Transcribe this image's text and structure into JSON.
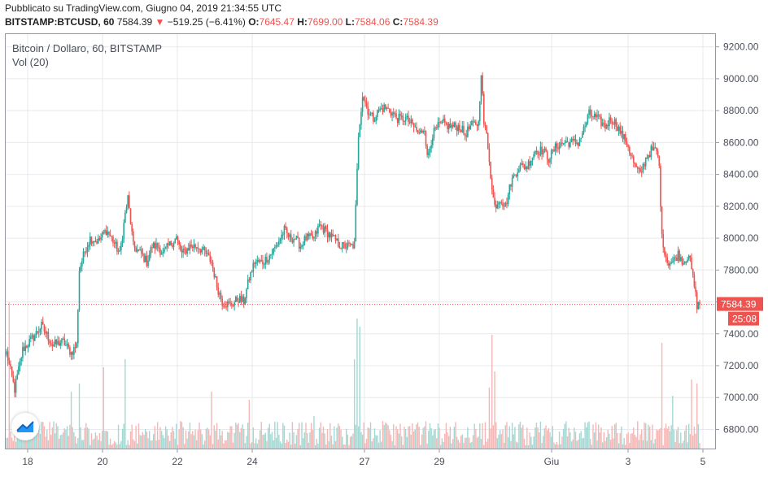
{
  "header": {
    "published": "Pubblicato su TradingView.com, Giugno 04, 2019 21:34:55 UTC",
    "symbol": "BITSTAMP:BTCUSD, 60",
    "last": "7584.39",
    "change": "−519.25 (−6.41%)",
    "o_label": "O:",
    "o_value": "7645.47",
    "h_label": "H:",
    "h_value": "7699.00",
    "l_label": "L:",
    "l_value": "7584.06",
    "c_label": "C:",
    "c_value": "7584.39"
  },
  "legend": {
    "title": "Bitcoin / Dollaro, 60, BITSTAMP",
    "volume": "Vol (20)"
  },
  "price_tag": {
    "value": "7584.39",
    "countdown": "25:08"
  },
  "colors": {
    "up": "#26a69a",
    "down": "#ef5350",
    "up_vol": "#a4d8d3",
    "down_vol": "#f5b7b5",
    "grid": "#e6e9ee",
    "axis_text": "#4a4e59"
  },
  "chart_data": {
    "type": "candlestick",
    "x_ticks": [
      "18",
      "20",
      "22",
      "24",
      "27",
      "29",
      "Giu",
      "3",
      "5"
    ],
    "y_ticks": [
      6800,
      7000,
      7200,
      7400,
      7600,
      7800,
      8000,
      8200,
      8400,
      8600,
      8800,
      9000,
      9200
    ],
    "ylim": [
      6680,
      9280
    ],
    "last_price": 7584.39,
    "anchors": [
      [
        0,
        7280
      ],
      [
        6,
        7050
      ],
      [
        12,
        7300
      ],
      [
        20,
        7380
      ],
      [
        26,
        7450
      ],
      [
        34,
        7330
      ],
      [
        42,
        7350
      ],
      [
        48,
        7280
      ],
      [
        52,
        7330
      ],
      [
        54,
        7800
      ],
      [
        58,
        7920
      ],
      [
        62,
        8000
      ],
      [
        68,
        7980
      ],
      [
        74,
        8050
      ],
      [
        78,
        8000
      ],
      [
        84,
        7900
      ],
      [
        88,
        8150
      ],
      [
        90,
        8250
      ],
      [
        94,
        7950
      ],
      [
        100,
        7900
      ],
      [
        104,
        7850
      ],
      [
        108,
        7950
      ],
      [
        112,
        7950
      ],
      [
        116,
        7900
      ],
      [
        120,
        7950
      ],
      [
        126,
        8000
      ],
      [
        130,
        7900
      ],
      [
        136,
        7950
      ],
      [
        142,
        7950
      ],
      [
        148,
        7900
      ],
      [
        152,
        7850
      ],
      [
        156,
        7700
      ],
      [
        160,
        7600
      ],
      [
        166,
        7580
      ],
      [
        172,
        7620
      ],
      [
        176,
        7600
      ],
      [
        180,
        7750
      ],
      [
        184,
        7850
      ],
      [
        190,
        7850
      ],
      [
        196,
        7900
      ],
      [
        200,
        7950
      ],
      [
        206,
        8050
      ],
      [
        210,
        8000
      ],
      [
        214,
        8000
      ],
      [
        218,
        7950
      ],
      [
        222,
        8000
      ],
      [
        228,
        8000
      ],
      [
        232,
        8080
      ],
      [
        236,
        8050
      ],
      [
        242,
        8000
      ],
      [
        248,
        7950
      ],
      [
        252,
        7950
      ],
      [
        256,
        7950
      ],
      [
        258,
        7960
      ],
      [
        261,
        8650
      ],
      [
        264,
        8900
      ],
      [
        268,
        8800
      ],
      [
        272,
        8750
      ],
      [
        276,
        8800
      ],
      [
        280,
        8820
      ],
      [
        284,
        8800
      ],
      [
        290,
        8750
      ],
      [
        296,
        8750
      ],
      [
        302,
        8700
      ],
      [
        306,
        8650
      ],
      [
        310,
        8700
      ],
      [
        312,
        8500
      ],
      [
        316,
        8650
      ],
      [
        320,
        8700
      ],
      [
        324,
        8720
      ],
      [
        328,
        8700
      ],
      [
        332,
        8700
      ],
      [
        336,
        8700
      ],
      [
        340,
        8650
      ],
      [
        344,
        8700
      ],
      [
        348,
        8720
      ],
      [
        350,
        8720
      ],
      [
        352,
        9050
      ],
      [
        354,
        8720
      ],
      [
        356,
        8650
      ],
      [
        358,
        8500
      ],
      [
        360,
        8300
      ],
      [
        362,
        8200
      ],
      [
        366,
        8250
      ],
      [
        370,
        8200
      ],
      [
        374,
        8350
      ],
      [
        380,
        8450
      ],
      [
        386,
        8450
      ],
      [
        392,
        8550
      ],
      [
        398,
        8550
      ],
      [
        402,
        8500
      ],
      [
        408,
        8580
      ],
      [
        414,
        8600
      ],
      [
        420,
        8600
      ],
      [
        424,
        8600
      ],
      [
        428,
        8680
      ],
      [
        432,
        8780
      ],
      [
        438,
        8750
      ],
      [
        444,
        8700
      ],
      [
        448,
        8750
      ],
      [
        452,
        8720
      ],
      [
        456,
        8650
      ],
      [
        460,
        8600
      ],
      [
        462,
        8550
      ],
      [
        466,
        8450
      ],
      [
        470,
        8400
      ],
      [
        474,
        8500
      ],
      [
        478,
        8550
      ],
      [
        482,
        8550
      ],
      [
        484,
        8450
      ],
      [
        486,
        8000
      ],
      [
        490,
        7850
      ],
      [
        494,
        7850
      ],
      [
        498,
        7900
      ],
      [
        502,
        7850
      ],
      [
        506,
        7900
      ],
      [
        510,
        7700
      ],
      [
        512,
        7580
      ],
      [
        514,
        7584.39
      ]
    ],
    "volume_spikes": [
      [
        2,
        180
      ],
      [
        48,
        70
      ],
      [
        54,
        80
      ],
      [
        72,
        100
      ],
      [
        88,
        110
      ],
      [
        152,
        70
      ],
      [
        180,
        60
      ],
      [
        228,
        40
      ],
      [
        258,
        110
      ],
      [
        260,
        160
      ],
      [
        262,
        150
      ],
      [
        360,
        140
      ],
      [
        358,
        75
      ],
      [
        362,
        95
      ],
      [
        486,
        130
      ],
      [
        494,
        65
      ],
      [
        512,
        80
      ],
      [
        508,
        85
      ]
    ]
  }
}
